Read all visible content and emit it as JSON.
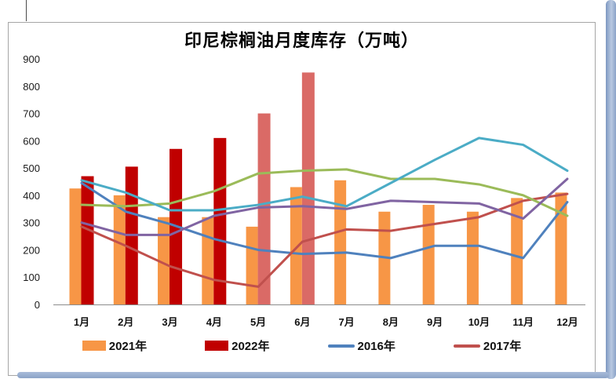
{
  "frame": {
    "corner_mark_color": "#c00000",
    "rail_color": "#93abce",
    "chart_border_color": "#a6a6a6"
  },
  "chart_data": {
    "type": "combo-bar-line",
    "title": "印尼棕榈油月度库存（万吨）",
    "categories": [
      "1月",
      "2月",
      "3月",
      "4月",
      "5月",
      "6月",
      "7月",
      "8月",
      "9月",
      "10月",
      "11月",
      "12月"
    ],
    "y_axis": {
      "min": 0,
      "max": 900,
      "step": 100,
      "tick_labels": [
        "0",
        "100",
        "200",
        "300",
        "400",
        "500",
        "600",
        "700",
        "800",
        "900"
      ]
    },
    "grid": "off",
    "bar_series": [
      {
        "name": "2021年",
        "color": "#F79646",
        "values": [
          425,
          400,
          320,
          320,
          285,
          430,
          455,
          340,
          365,
          340,
          390,
          410
        ]
      },
      {
        "name": "2022年",
        "color": "#C00000",
        "light_color": "#DA6A66",
        "light_start_index": 4,
        "values": [
          470,
          505,
          570,
          610,
          700,
          850,
          null,
          null,
          null,
          null,
          null,
          null
        ]
      }
    ],
    "line_series": [
      {
        "name": "2016年",
        "color": "#4F81BD",
        "values": [
          445,
          340,
          295,
          240,
          200,
          185,
          190,
          170,
          215,
          215,
          170,
          375
        ]
      },
      {
        "name": "2017年",
        "color": "#C0504D",
        "values": [
          285,
          215,
          140,
          90,
          65,
          230,
          275,
          270,
          295,
          320,
          380,
          405
        ]
      },
      {
        "name": "green-line-unlabeled",
        "color": "#9BBB59",
        "values": [
          365,
          360,
          370,
          415,
          480,
          490,
          495,
          460,
          460,
          440,
          400,
          325
        ]
      },
      {
        "name": "purple-line-unlabeled",
        "color": "#8064A2",
        "values": [
          300,
          255,
          255,
          325,
          355,
          360,
          350,
          380,
          375,
          370,
          315,
          460
        ]
      },
      {
        "name": "teal-line-unlabeled",
        "color": "#4BACC6",
        "values": [
          455,
          410,
          345,
          345,
          365,
          395,
          360,
          445,
          530,
          610,
          585,
          490
        ]
      }
    ],
    "legend": [
      {
        "label": "2021年",
        "type": "bar",
        "color": "#F79646"
      },
      {
        "label": "2022年",
        "type": "bar",
        "color": "#C00000"
      },
      {
        "label": "2016年",
        "type": "line",
        "color": "#4F81BD"
      },
      {
        "label": "2017年",
        "type": "line",
        "color": "#C0504D"
      }
    ],
    "legend_position": "bottom"
  }
}
